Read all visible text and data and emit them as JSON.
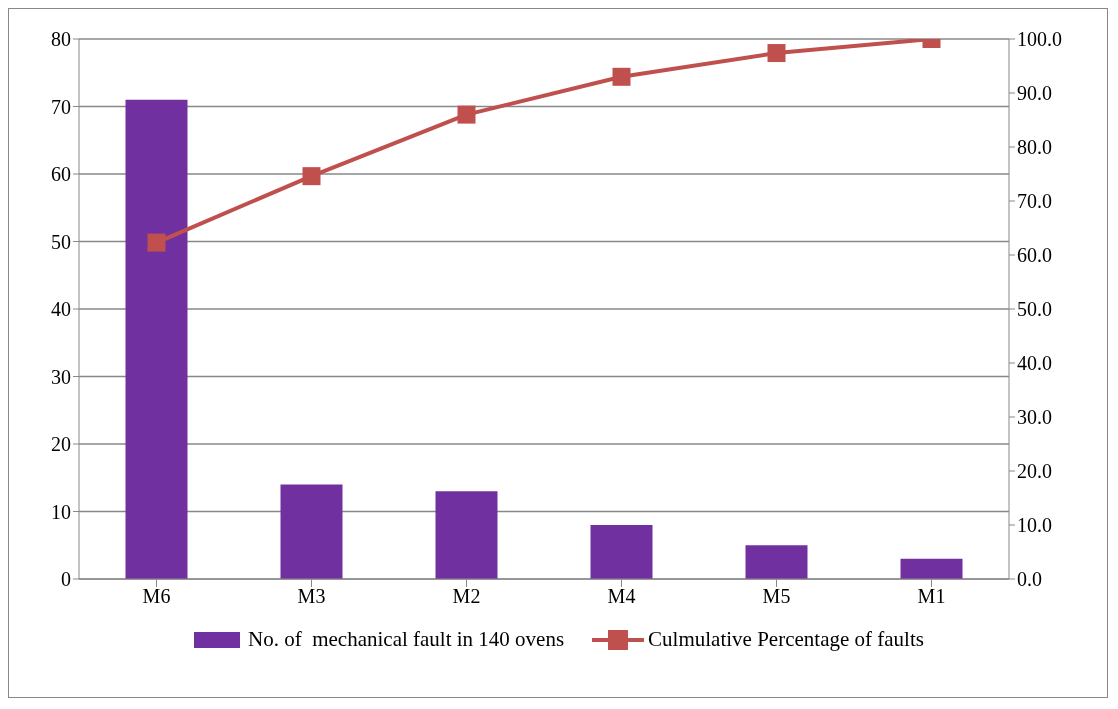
{
  "chart_data": {
    "type": "bar",
    "categories": [
      "M6",
      "M3",
      "M2",
      "M4",
      "M5",
      "M1"
    ],
    "series": [
      {
        "name": "No. of  mechanical fault in 140 ovens",
        "color": "#7030a0",
        "values": [
          71,
          14,
          13,
          8,
          5,
          3
        ]
      },
      {
        "name": "Culmulative Percentage of faults",
        "color": "#c0504d",
        "type": "line",
        "axis": "y2",
        "marker": "square",
        "values": [
          62.3,
          74.6,
          86.0,
          93.0,
          97.4,
          100.0
        ]
      }
    ],
    "ylim": [
      0,
      80
    ],
    "yticks": [
      0,
      10,
      20,
      30,
      40,
      50,
      60,
      70,
      80
    ],
    "y2lim": [
      0,
      100
    ],
    "y2ticks": [
      {
        "value": 0,
        "label": "0.0"
      },
      {
        "value": 10,
        "label": "10.0"
      },
      {
        "value": 20,
        "label": "20.0"
      },
      {
        "value": 30,
        "label": "30.0"
      },
      {
        "value": 40,
        "label": "40.0"
      },
      {
        "value": 50,
        "label": "50.0"
      },
      {
        "value": 60,
        "label": "60.0"
      },
      {
        "value": 70,
        "label": "70.0"
      },
      {
        "value": 80,
        "label": "80.0"
      },
      {
        "value": 90,
        "label": "90.0"
      },
      {
        "value": 100,
        "label": "100.0"
      }
    ],
    "grid": "y",
    "legend": "bottom"
  }
}
